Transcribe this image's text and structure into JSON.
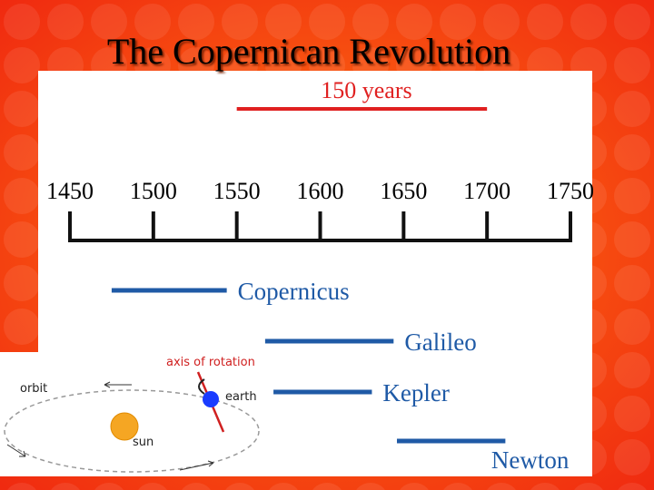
{
  "chart_data": {
    "type": "timeline",
    "title": "The Copernican Revolution",
    "xlim": [
      1450,
      1750
    ],
    "xticks": [
      1450,
      1500,
      1550,
      1600,
      1650,
      1700,
      1750
    ],
    "annotation": {
      "text": "150 years",
      "start": 1550,
      "end": 1700,
      "color": "#e02020"
    },
    "spans": [
      {
        "name": "Copernicus",
        "start": 1475,
        "end": 1544,
        "color": "#1f5aa6"
      },
      {
        "name": "Galileo",
        "start": 1567,
        "end": 1644,
        "color": "#1f5aa6"
      },
      {
        "name": "Kepler",
        "start": 1572,
        "end": 1631,
        "color": "#1f5aa6"
      },
      {
        "name": "Newton",
        "start": 1646,
        "end": 1711,
        "color": "#1f5aa6"
      }
    ]
  },
  "inset": {
    "orbit": "orbit",
    "axis": "axis of rotation",
    "earth": "earth",
    "sun": "sun"
  }
}
